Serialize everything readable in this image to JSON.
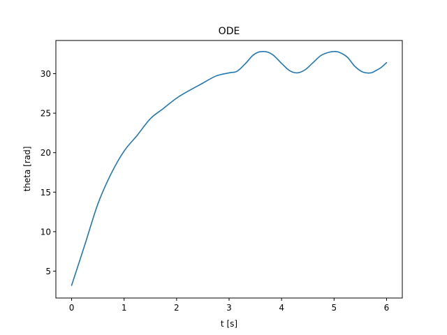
{
  "chart_data": {
    "type": "line",
    "title": "ODE",
    "xlabel": "t [s]",
    "ylabel": "theta [rad]",
    "xlim": [
      -0.3,
      6.3
    ],
    "ylim": [
      1.6,
      34.2
    ],
    "xticks": [
      0,
      1,
      2,
      3,
      4,
      5,
      6
    ],
    "xtick_labels": [
      "0",
      "1",
      "2",
      "3",
      "4",
      "5",
      "6"
    ],
    "yticks": [
      5,
      10,
      15,
      20,
      25,
      30
    ],
    "ytick_labels": [
      "5",
      "10",
      "15",
      "20",
      "25",
      "30"
    ],
    "grid": false,
    "series": [
      {
        "color": "#1f77b4",
        "x": [
          0,
          0.25,
          0.5,
          0.75,
          1.0,
          1.25,
          1.5,
          1.75,
          2.0,
          2.25,
          2.5,
          2.75,
          3.0,
          3.15,
          3.3,
          3.45,
          3.55,
          3.65,
          3.75,
          3.85,
          4.0,
          4.15,
          4.3,
          4.45,
          4.6,
          4.75,
          4.9,
          5.0,
          5.1,
          5.25,
          5.4,
          5.55,
          5.7,
          5.8,
          5.9,
          6.0
        ],
        "y": [
          3.2,
          8.3,
          13.5,
          17.3,
          20.2,
          22.2,
          24.3,
          25.6,
          26.9,
          27.9,
          28.8,
          29.7,
          30.1,
          30.3,
          31.2,
          32.3,
          32.7,
          32.8,
          32.7,
          32.3,
          31.3,
          30.4,
          30.1,
          30.5,
          31.4,
          32.3,
          32.7,
          32.8,
          32.7,
          32.1,
          30.9,
          30.2,
          30.1,
          30.4,
          30.8,
          31.4
        ]
      }
    ]
  }
}
